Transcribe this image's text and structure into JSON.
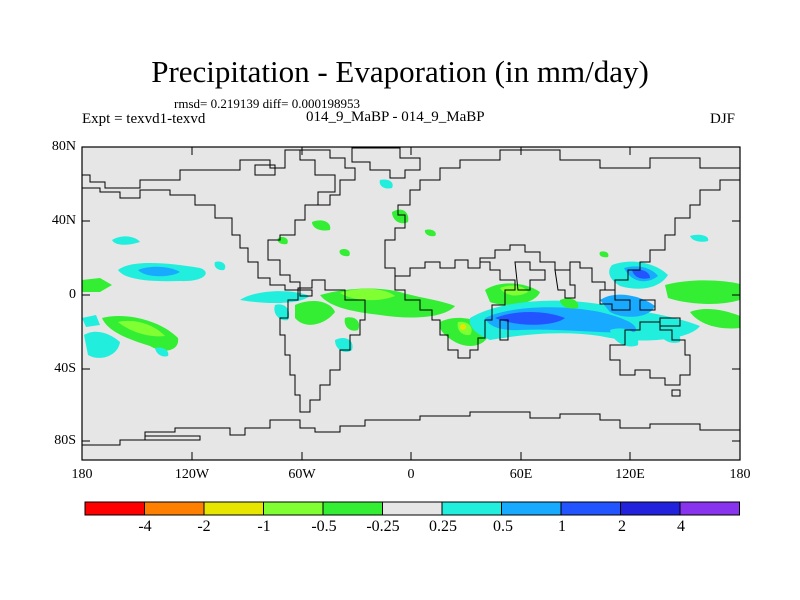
{
  "figure": {
    "title": "Precipitation - Evaporation (in mm/day)",
    "stats": "rmsd= 0.219139 diff= 0.000198953",
    "experiment": "Expt = texvd1-texvd",
    "period": "014_9_MaBP - 014_9_MaBP",
    "season": "DJF"
  },
  "axes": {
    "lat_labels": [
      "80N",
      "40N",
      "0",
      "40S",
      "80S"
    ],
    "lon_labels": [
      "180",
      "120W",
      "60W",
      "0",
      "60E",
      "120E",
      "180"
    ]
  },
  "colorbar": {
    "labels": [
      "-4",
      "-2",
      "-1",
      "-0.5",
      "-0.25",
      "0.25",
      "0.5",
      "1",
      "2",
      "4"
    ],
    "colors": [
      "#ff0000",
      "#ff8000",
      "#e6e600",
      "#80ff33",
      "#33ee33",
      "#e6e6e6",
      "#22eedd",
      "#18aaff",
      "#2255ff",
      "#2222dd",
      "#8833ee"
    ]
  },
  "colors": {
    "land_background": "#e6e6e6",
    "coast": "#000000"
  }
}
